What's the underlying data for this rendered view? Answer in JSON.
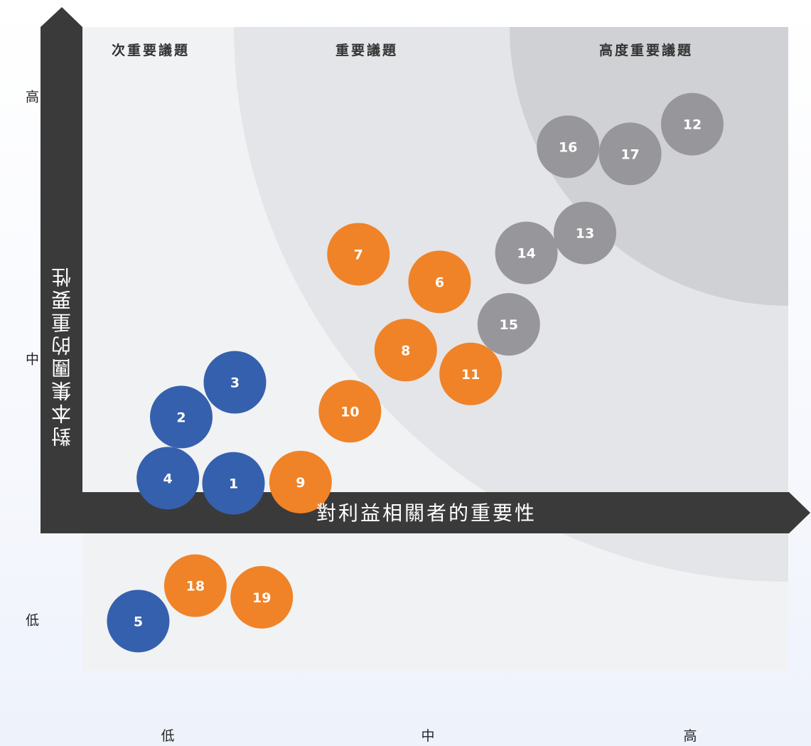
{
  "chart_data": {
    "type": "scatter",
    "xlabel": "對利益相關者的重要性",
    "ylabel": "對本集團的重要性",
    "x_ticks": [
      "低",
      "中",
      "高"
    ],
    "y_ticks": [
      "低",
      "中",
      "高"
    ],
    "xlim": [
      0,
      10
    ],
    "ylim": [
      0,
      10
    ],
    "zones": [
      "次重要議題",
      "重要議題",
      "高度重要議題"
    ],
    "colors": {
      "blue": "#3560ad",
      "orange": "#f08327",
      "gray": "#97979b"
    },
    "points": [
      {
        "label": "1",
        "x": 2.14,
        "y": 2.91,
        "color": "blue"
      },
      {
        "label": "2",
        "x": 1.4,
        "y": 3.94,
        "color": "blue"
      },
      {
        "label": "3",
        "x": 2.16,
        "y": 4.48,
        "color": "blue"
      },
      {
        "label": "4",
        "x": 1.21,
        "y": 2.99,
        "color": "blue"
      },
      {
        "label": "5",
        "x": 0.79,
        "y": 0.77,
        "color": "blue"
      },
      {
        "label": "6",
        "x": 5.06,
        "y": 6.04,
        "color": "orange"
      },
      {
        "label": "7",
        "x": 3.91,
        "y": 6.47,
        "color": "orange"
      },
      {
        "label": "8",
        "x": 4.58,
        "y": 4.98,
        "color": "orange"
      },
      {
        "label": "9",
        "x": 3.09,
        "y": 2.93,
        "color": "orange"
      },
      {
        "label": "10",
        "x": 3.79,
        "y": 4.03,
        "color": "orange"
      },
      {
        "label": "11",
        "x": 5.5,
        "y": 4.61,
        "color": "orange"
      },
      {
        "label": "12",
        "x": 8.64,
        "y": 8.49,
        "color": "gray"
      },
      {
        "label": "13",
        "x": 7.12,
        "y": 6.8,
        "color": "gray"
      },
      {
        "label": "14",
        "x": 6.29,
        "y": 6.49,
        "color": "gray"
      },
      {
        "label": "15",
        "x": 6.04,
        "y": 5.38,
        "color": "gray"
      },
      {
        "label": "16",
        "x": 6.88,
        "y": 8.14,
        "color": "gray"
      },
      {
        "label": "17",
        "x": 7.76,
        "y": 8.03,
        "color": "gray"
      },
      {
        "label": "18",
        "x": 1.6,
        "y": 1.32,
        "color": "orange"
      },
      {
        "label": "19",
        "x": 2.54,
        "y": 1.14,
        "color": "orange"
      }
    ]
  }
}
